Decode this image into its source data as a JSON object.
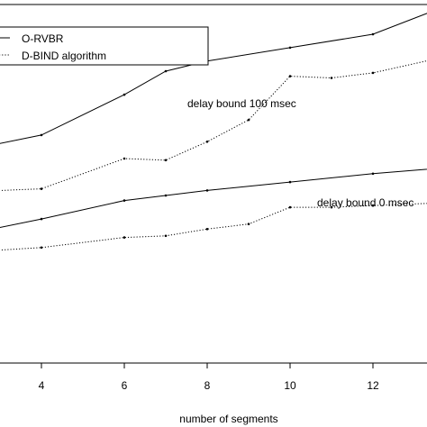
{
  "chart_data": {
    "type": "line",
    "xlabel": "number of segments",
    "ylabel": "",
    "xlim": [
      2,
      14
    ],
    "ylim": [
      0,
      1
    ],
    "xticks": [
      4,
      6,
      8,
      10,
      12
    ],
    "grid": false,
    "legend_position": "top-left",
    "legend": [
      {
        "label": "O-RVBR",
        "style": "solid"
      },
      {
        "label": "D-BIND algorithm",
        "style": "dotted"
      }
    ],
    "annotations": [
      "delay bound 100 msec",
      "delay bound 0 msec"
    ],
    "series": [
      {
        "name": "O-RVBR",
        "group": "delay bound 100 msec",
        "style": "solid",
        "x": [
          2,
          4,
          6,
          7,
          8,
          10,
          12,
          14
        ],
        "y": [
          0.575,
          0.625,
          0.745,
          0.815,
          0.845,
          0.885,
          0.925,
          1.02
        ]
      },
      {
        "name": "D-BIND algorithm",
        "group": "delay bound 100 msec",
        "style": "dotted",
        "x": [
          2,
          4,
          6,
          7,
          8,
          9,
          10,
          11,
          12,
          14
        ],
        "y": [
          0.455,
          0.465,
          0.555,
          0.55,
          0.605,
          0.67,
          0.8,
          0.795,
          0.81,
          0.865
        ]
      },
      {
        "name": "O-RVBR",
        "group": "delay bound 0 msec",
        "style": "solid",
        "x": [
          2,
          4,
          6,
          7,
          8,
          10,
          12,
          14
        ],
        "y": [
          0.325,
          0.375,
          0.43,
          0.445,
          0.46,
          0.485,
          0.51,
          0.53
        ]
      },
      {
        "name": "D-BIND algorithm",
        "group": "delay bound 0 msec",
        "style": "dotted",
        "x": [
          2,
          4,
          6,
          7,
          8,
          9,
          10,
          11,
          12,
          14
        ],
        "y": [
          0.275,
          0.29,
          0.32,
          0.325,
          0.345,
          0.36,
          0.41,
          0.41,
          0.415,
          0.425
        ]
      }
    ]
  }
}
